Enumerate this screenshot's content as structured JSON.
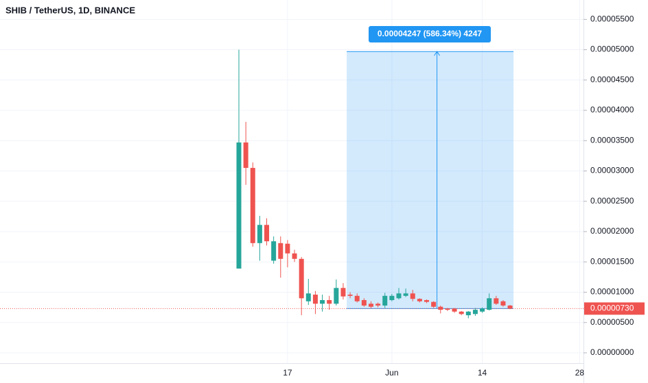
{
  "chart_data": {
    "type": "candlestick",
    "title": "SHIB / TetherUS, 1D, BINANCE",
    "open": [
      1.39e-05,
      3.47e-05,
      3.05e-05,
      1.81e-05,
      2.11e-05,
      1.52e-05,
      1.81e-05,
      1.8e-05,
      1.64e-05,
      1.55e-05,
      8.5e-06,
      9.6e-06,
      8.1e-06,
      8.7e-06,
      8.1e-06,
      1.07e-05,
      9.6e-06,
      9.4e-06,
      8.7e-06,
      8.1e-06,
      8.1e-06,
      7.8e-06,
      8.7e-06,
      9e-06,
      9.4e-06,
      9.8e-06,
      8.9e-06,
      8.7e-06,
      8.4e-06,
      7.6e-06,
      7.3e-06,
      7.3e-06,
      6.8e-06,
      6.2e-06,
      6.4e-06,
      6.8e-06,
      7.1e-06,
      9e-06,
      8.5e-06,
      7.8e-06
    ],
    "high": [
      5e-05,
      3.81e-05,
      3.14e-05,
      2.26e-05,
      2.22e-05,
      1.92e-05,
      1.92e-05,
      1.86e-05,
      1.7e-05,
      1.58e-05,
      1.22e-05,
      1.02e-05,
      9.6e-06,
      9.4e-06,
      1.21e-05,
      1.15e-05,
      1e-05,
      9.8e-06,
      9e-06,
      8.5e-06,
      8.3e-06,
      9.9e-06,
      9.7e-06,
      1.07e-05,
      1.06e-05,
      1.04e-05,
      9e-06,
      8.8e-06,
      8.5e-06,
      7.8e-06,
      7.4e-06,
      7.4e-06,
      6.9e-06,
      6.9e-06,
      7.4e-06,
      7.5e-06,
      9.8e-06,
      9.4e-06,
      8.7e-06,
      7.9e-06
    ],
    "low": [
      1.39e-05,
      2.77e-05,
      1.75e-05,
      1.52e-05,
      1.77e-05,
      1.47e-05,
      1.24e-05,
      1.41e-05,
      1.5e-05,
      6.2e-06,
      7.9e-06,
      6.4e-06,
      6.8e-06,
      7.1e-06,
      7.8e-06,
      8.8e-06,
      9e-06,
      8.3e-06,
      7.6e-06,
      7.3e-06,
      7.5e-06,
      7.4e-06,
      8.5e-06,
      8.8e-06,
      9.2e-06,
      8.5e-06,
      8.3e-06,
      8.2e-06,
      7.4e-06,
      6.5e-06,
      6.9e-06,
      6.6e-06,
      6.2e-06,
      5.7e-06,
      6.1e-06,
      6.6e-06,
      7e-06,
      7.9e-06,
      7.6e-06,
      7.2e-06
    ],
    "close": [
      3.47e-05,
      3.05e-05,
      1.81e-05,
      2.11e-05,
      1.84e-05,
      1.84e-05,
      1.55e-05,
      1.64e-05,
      1.55e-05,
      9e-06,
      9.8e-06,
      8.1e-06,
      8.7e-06,
      8.1e-06,
      1.07e-05,
      9.3e-06,
      9.4e-06,
      8.5e-06,
      7.8e-06,
      7.6e-06,
      7.8e-06,
      9.4e-06,
      9.4e-06,
      9.8e-06,
      9.8e-06,
      8.9e-06,
      8.5e-06,
      8.4e-06,
      7.6e-06,
      7.1e-06,
      7.1e-06,
      6.8e-06,
      6.4e-06,
      6.8e-06,
      7.1e-06,
      7.3e-06,
      9e-06,
      8.1e-06,
      7.8e-06,
      7.3e-06
    ],
    "up_color": "#26a69a",
    "down_color": "#ef5350",
    "xticks": [
      "17",
      "Jun",
      "14",
      "28"
    ],
    "ylim": [
      -1.7e-06,
      5.82e-05
    ],
    "yticks": [
      {
        "value": 0,
        "label": "0.00000000"
      },
      {
        "value": 5e-06,
        "label": "0.00000500"
      },
      {
        "value": 1e-05,
        "label": "0.00001000"
      },
      {
        "value": 1.5e-05,
        "label": "0.00001500"
      },
      {
        "value": 2e-05,
        "label": "0.00002000"
      },
      {
        "value": 2.5e-05,
        "label": "0.00002500"
      },
      {
        "value": 3e-05,
        "label": "0.00003000"
      },
      {
        "value": 3.5e-05,
        "label": "0.00003500"
      },
      {
        "value": 4e-05,
        "label": "0.00004000"
      },
      {
        "value": 4.5e-05,
        "label": "0.00004500"
      },
      {
        "value": 5e-05,
        "label": "0.00005000"
      },
      {
        "value": 5.5e-05,
        "label": "0.00005500"
      }
    ],
    "grid": true,
    "last_price": {
      "value": 7.3e-06,
      "label": "0.00000730"
    },
    "measure": {
      "label": "0.00004247 (586.34%) 4247",
      "from": 7.3e-06,
      "to": 4.97e-05
    }
  }
}
